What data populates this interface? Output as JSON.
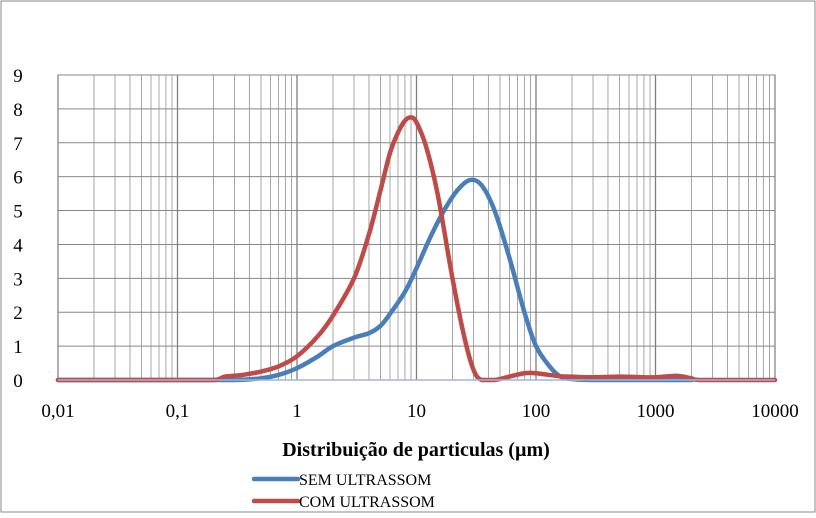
{
  "chart_data": {
    "type": "line",
    "title": "",
    "xlabel": "Distribuição de particulas (µm)",
    "ylabel": "",
    "x_scale": "log",
    "xlim": [
      0.01,
      10000
    ],
    "ylim": [
      0,
      9
    ],
    "x_tick_labels": [
      "0,01",
      "0,1",
      "1",
      "10",
      "100",
      "1000",
      "10000"
    ],
    "y_tick_labels": [
      "0",
      "1",
      "2",
      "3",
      "4",
      "5",
      "6",
      "7",
      "8",
      "9"
    ],
    "grid": true,
    "legend_position": "bottom",
    "series": [
      {
        "name": "SEM ULTRASSOM",
        "color": "#4a7ebb",
        "points": [
          [
            0.01,
            0
          ],
          [
            0.1,
            0
          ],
          [
            0.3,
            0
          ],
          [
            0.5,
            0.05
          ],
          [
            0.7,
            0.15
          ],
          [
            1,
            0.35
          ],
          [
            1.5,
            0.7
          ],
          [
            2,
            1.0
          ],
          [
            3,
            1.25
          ],
          [
            4,
            1.38
          ],
          [
            5,
            1.6
          ],
          [
            6,
            1.95
          ],
          [
            8,
            2.6
          ],
          [
            10,
            3.3
          ],
          [
            13,
            4.2
          ],
          [
            17,
            5.0
          ],
          [
            22,
            5.6
          ],
          [
            28,
            5.9
          ],
          [
            35,
            5.75
          ],
          [
            45,
            5.0
          ],
          [
            60,
            3.6
          ],
          [
            80,
            2.0
          ],
          [
            100,
            1.0
          ],
          [
            130,
            0.4
          ],
          [
            160,
            0.1
          ],
          [
            200,
            0.03
          ],
          [
            300,
            0
          ],
          [
            1000,
            0
          ],
          [
            2000,
            0
          ]
        ]
      },
      {
        "name": "COM ULTRASSOM",
        "color": "#be4b48",
        "points": [
          [
            0.01,
            0
          ],
          [
            0.1,
            0
          ],
          [
            0.2,
            0
          ],
          [
            0.25,
            0.1
          ],
          [
            0.35,
            0.15
          ],
          [
            0.5,
            0.25
          ],
          [
            0.7,
            0.4
          ],
          [
            1,
            0.7
          ],
          [
            1.5,
            1.3
          ],
          [
            2,
            1.9
          ],
          [
            3,
            3.0
          ],
          [
            4,
            4.3
          ],
          [
            5,
            5.6
          ],
          [
            6,
            6.7
          ],
          [
            7,
            7.3
          ],
          [
            8,
            7.65
          ],
          [
            9,
            7.75
          ],
          [
            10,
            7.6
          ],
          [
            12,
            6.9
          ],
          [
            15,
            5.5
          ],
          [
            20,
            3.0
          ],
          [
            25,
            1.3
          ],
          [
            30,
            0.3
          ],
          [
            35,
            0
          ],
          [
            45,
            0
          ],
          [
            60,
            0.1
          ],
          [
            80,
            0.2
          ],
          [
            100,
            0.2
          ],
          [
            150,
            0.12
          ],
          [
            200,
            0.1
          ],
          [
            300,
            0.08
          ],
          [
            500,
            0.1
          ],
          [
            800,
            0.08
          ],
          [
            1000,
            0.08
          ],
          [
            1500,
            0.12
          ],
          [
            2000,
            0.05
          ],
          [
            2500,
            0
          ],
          [
            10000,
            0
          ]
        ]
      }
    ]
  }
}
